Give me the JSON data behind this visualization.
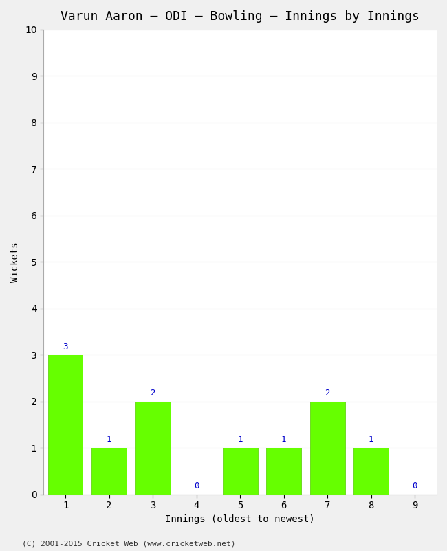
{
  "title": "Varun Aaron – ODI – Bowling – Innings by Innings",
  "xlabel": "Innings (oldest to newest)",
  "ylabel": "Wickets",
  "categories": [
    "1",
    "2",
    "3",
    "4",
    "5",
    "6",
    "7",
    "8",
    "9"
  ],
  "values": [
    3,
    1,
    2,
    0,
    1,
    1,
    2,
    1,
    0
  ],
  "bar_color": "#66ff00",
  "bar_edge_color": "#55cc00",
  "label_color": "#0000cc",
  "ylim": [
    0,
    10
  ],
  "yticks": [
    0,
    1,
    2,
    3,
    4,
    5,
    6,
    7,
    8,
    9,
    10
  ],
  "background_color": "#f0f0f0",
  "plot_bg_color": "#ffffff",
  "title_fontsize": 13,
  "axis_fontsize": 10,
  "label_fontsize": 9,
  "footer": "(C) 2001-2015 Cricket Web (www.cricketweb.net)"
}
